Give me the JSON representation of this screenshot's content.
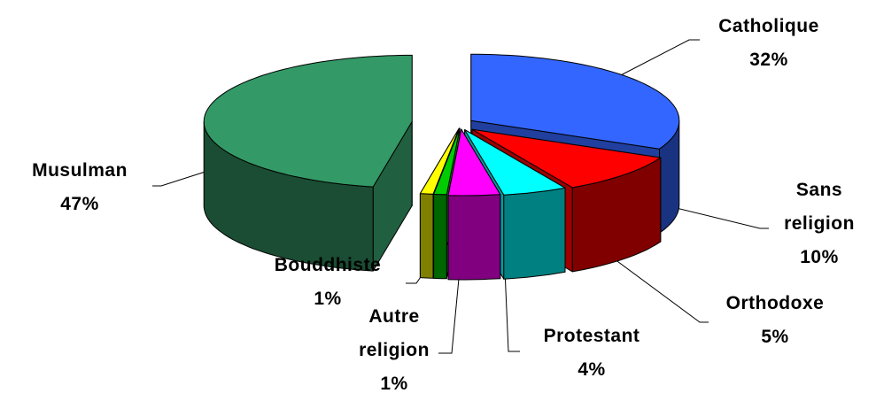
{
  "chart_data": {
    "type": "pie",
    "three_d": true,
    "categories": [
      "Catholique",
      "Sans religion",
      "Orthodoxe",
      "Protestant",
      "Autre religion",
      "Bouddhiste",
      "Musulman"
    ],
    "values": [
      32,
      10,
      5,
      4,
      1,
      1,
      47
    ],
    "value_labels": [
      "32%",
      "10%",
      "5%",
      "4%",
      "1%",
      "1%",
      "47%"
    ],
    "colors": [
      "#3366ff",
      "#ff0000",
      "#00ffff",
      "#ff00ff",
      "#00cc00",
      "#ffff00",
      "#339966"
    ]
  }
}
